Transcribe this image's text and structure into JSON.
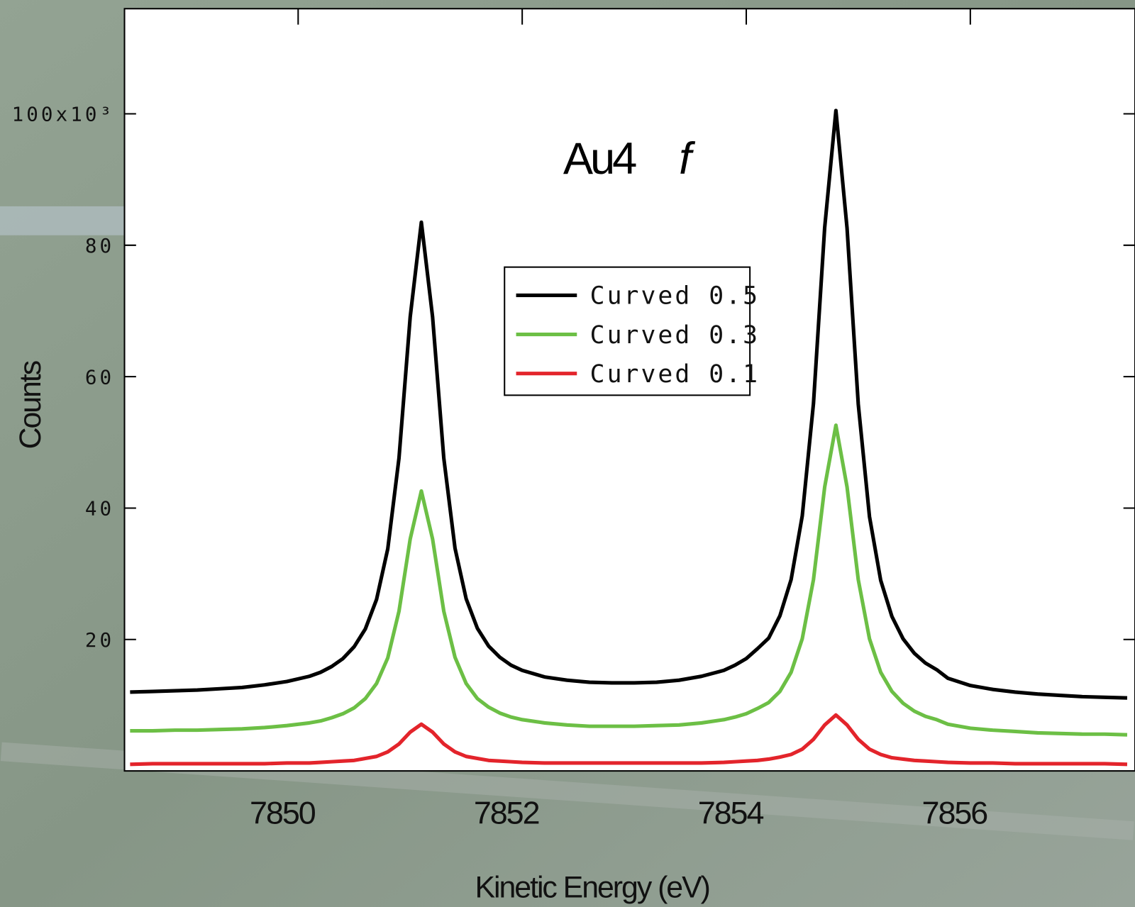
{
  "chart_data": {
    "type": "line",
    "title": [
      "Au4",
      "f"
    ],
    "x_label": "Kinetic Energy (eV)",
    "y_label": "Counts",
    "x": [
      7848.5,
      7848.7,
      7848.9,
      7849.1,
      7849.3,
      7849.5,
      7849.7,
      7849.9,
      7850.1,
      7850.2,
      7850.3,
      7850.4,
      7850.5,
      7850.6,
      7850.7,
      7850.8,
      7850.9,
      7851.0,
      7851.1,
      7851.2,
      7851.3,
      7851.4,
      7851.5,
      7851.6,
      7851.7,
      7851.8,
      7851.9,
      7852.0,
      7852.2,
      7852.4,
      7852.6,
      7852.8,
      7853.0,
      7853.2,
      7853.4,
      7853.6,
      7853.8,
      7853.9,
      7854.0,
      7854.1,
      7854.2,
      7854.3,
      7854.4,
      7854.5,
      7854.6,
      7854.7,
      7854.8,
      7854.9,
      7855.0,
      7855.1,
      7855.2,
      7855.3,
      7855.4,
      7855.5,
      7855.6,
      7855.7,
      7855.8,
      7856.0,
      7856.2,
      7856.4,
      7856.6,
      7856.8,
      7857.0,
      7857.2,
      7857.4
    ],
    "series": [
      {
        "name": "Curved 0.5",
        "color": "#000000",
        "values": [
          12000,
          12100,
          12200,
          12300,
          12500,
          12700,
          13100,
          13600,
          14400,
          15000,
          15900,
          17100,
          18900,
          21600,
          26100,
          33800,
          47600,
          69100,
          83500,
          69100,
          47600,
          33900,
          26200,
          21700,
          19000,
          17300,
          16100,
          15300,
          14300,
          13800,
          13500,
          13400,
          13400,
          13500,
          13800,
          14400,
          15300,
          16100,
          17100,
          18600,
          20200,
          23600,
          29100,
          38800,
          55900,
          82700,
          100500,
          82600,
          55800,
          38700,
          29000,
          23500,
          20100,
          17900,
          16400,
          15400,
          14100,
          13000,
          12400,
          12000,
          11700,
          11500,
          11300,
          11200,
          11100
        ]
      },
      {
        "name": "Curved 0.3",
        "color": "#6cbf45",
        "values": [
          6100,
          6100,
          6200,
          6200,
          6300,
          6400,
          6600,
          6900,
          7300,
          7600,
          8100,
          8700,
          9600,
          11000,
          13300,
          17200,
          24300,
          35300,
          42600,
          35300,
          24300,
          17300,
          13300,
          11000,
          9700,
          8800,
          8200,
          7800,
          7300,
          7000,
          6800,
          6800,
          6800,
          6900,
          7000,
          7300,
          7800,
          8200,
          8700,
          9500,
          10400,
          12100,
          15000,
          20100,
          29100,
          43200,
          52600,
          43200,
          29100,
          20100,
          15000,
          12100,
          10300,
          9100,
          8300,
          7800,
          7100,
          6500,
          6200,
          6000,
          5800,
          5700,
          5600,
          5600,
          5500
        ]
      },
      {
        "name": "Curved 0.1",
        "color": "#e3242b",
        "values": [
          1000,
          1100,
          1100,
          1100,
          1100,
          1100,
          1100,
          1200,
          1200,
          1300,
          1400,
          1500,
          1600,
          1900,
          2200,
          2900,
          4100,
          5900,
          7100,
          5900,
          4100,
          2900,
          2200,
          1900,
          1600,
          1500,
          1400,
          1300,
          1200,
          1200,
          1200,
          1200,
          1200,
          1200,
          1200,
          1200,
          1300,
          1400,
          1500,
          1600,
          1800,
          2100,
          2500,
          3300,
          4800,
          7000,
          8500,
          7000,
          4800,
          3300,
          2500,
          2000,
          1800,
          1600,
          1500,
          1400,
          1300,
          1200,
          1200,
          1100,
          1100,
          1100,
          1100,
          1100,
          1000
        ]
      }
    ],
    "xlim": [
      7848.45,
      7857.47
    ],
    "xticks": [
      7850,
      7852,
      7854,
      7856
    ],
    "ylim": [
      0,
      116000
    ],
    "yticks": [
      {
        "value": 20000,
        "label": "20"
      },
      {
        "value": 40000,
        "label": "40"
      },
      {
        "value": 60000,
        "label": "60"
      },
      {
        "value": 80000,
        "label": "80"
      },
      {
        "value": 100000,
        "label": "100x10³"
      }
    ],
    "grid": false,
    "legend": "upper center"
  }
}
